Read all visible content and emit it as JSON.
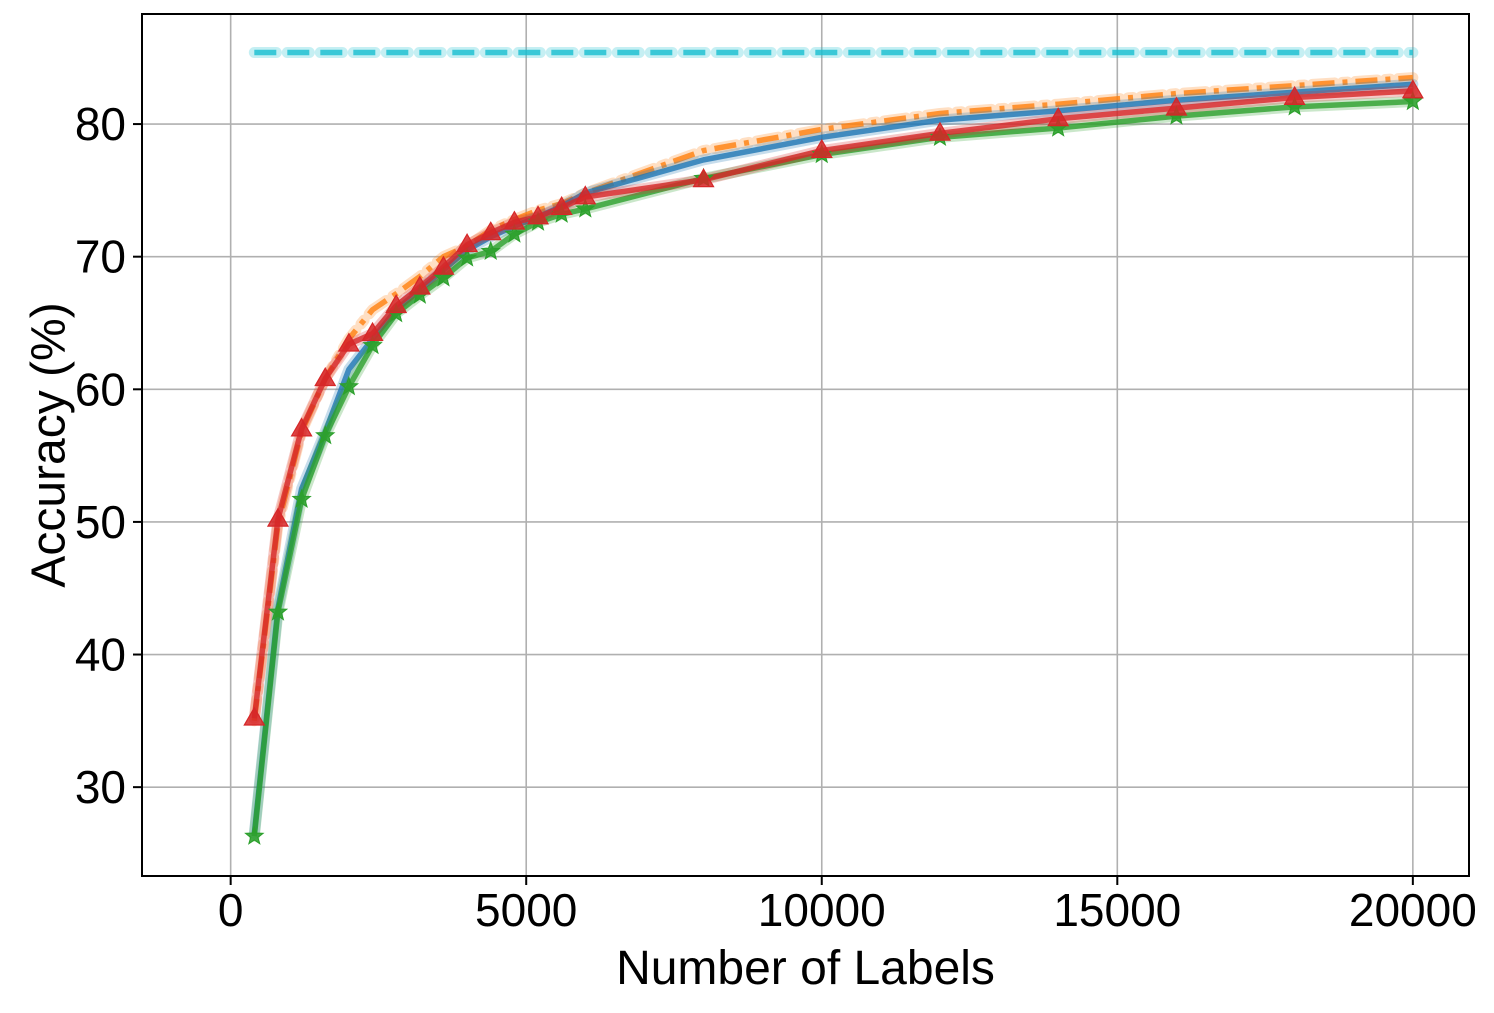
{
  "chart_data": {
    "type": "line",
    "title": "",
    "xlabel": "Number of Labels",
    "ylabel": "Accuracy (%)",
    "xlim": [
      -1500,
      20950
    ],
    "ylim": [
      23.3,
      88.3
    ],
    "xticks": [
      0,
      5000,
      10000,
      15000,
      20000
    ],
    "yticks": [
      30,
      40,
      50,
      60,
      70,
      80
    ],
    "grid": true,
    "legend": "none",
    "series": [
      {
        "color": "#17becf",
        "style": "dashed",
        "marker": "none",
        "x": [
          400,
          20000
        ],
        "y": [
          85.4,
          85.4
        ]
      },
      {
        "color": "#ff7f0e",
        "style": "dashdot",
        "marker": "none",
        "x": [
          400,
          800,
          1200,
          1600,
          2000,
          2400,
          2800,
          3200,
          3600,
          4000,
          4400,
          4800,
          5200,
          5600,
          6000,
          8000,
          10000,
          12000,
          14000,
          16000,
          18000,
          20000
        ],
        "y": [
          35.0,
          49.8,
          56.8,
          60.8,
          63.8,
          66.0,
          67.2,
          68.5,
          70.0,
          70.8,
          72.0,
          72.8,
          73.5,
          74.0,
          74.8,
          78.0,
          79.6,
          80.8,
          81.5,
          82.3,
          82.9,
          83.5
        ]
      },
      {
        "color": "#1f77b4",
        "style": "solid",
        "marker": "none",
        "x": [
          400,
          800,
          1200,
          1600,
          2000,
          2400,
          2800,
          3200,
          3600,
          4000,
          4400,
          4800,
          5200,
          5600,
          6000,
          8000,
          10000,
          12000,
          14000,
          16000,
          18000,
          20000
        ],
        "y": [
          26.5,
          43.5,
          52.5,
          56.8,
          61.5,
          63.8,
          66.0,
          67.5,
          69.0,
          70.5,
          71.5,
          72.3,
          73.0,
          73.8,
          74.8,
          77.3,
          79.0,
          80.3,
          81.0,
          81.8,
          82.4,
          83.0
        ]
      },
      {
        "color": "#2ca02c",
        "style": "solid",
        "marker": "star",
        "x": [
          400,
          800,
          1200,
          1600,
          2000,
          2400,
          2800,
          3200,
          3600,
          4000,
          4400,
          4800,
          5200,
          5600,
          6000,
          8000,
          10000,
          12000,
          14000,
          16000,
          18000,
          20000
        ],
        "y": [
          26.3,
          43.2,
          51.7,
          56.5,
          60.2,
          63.3,
          65.7,
          67.1,
          68.4,
          69.9,
          70.4,
          71.7,
          72.6,
          73.2,
          73.6,
          75.9,
          77.7,
          79.0,
          79.7,
          80.6,
          81.3,
          81.7
        ]
      },
      {
        "color": "#d62728",
        "style": "solid",
        "marker": "triangle",
        "x": [
          400,
          800,
          1200,
          1600,
          2000,
          2400,
          2800,
          3200,
          3600,
          4000,
          4400,
          4800,
          5200,
          5600,
          6000,
          8000,
          10000,
          12000,
          14000,
          16000,
          18000,
          20000
        ],
        "y": [
          35.2,
          50.2,
          57.0,
          60.8,
          63.4,
          64.2,
          66.3,
          67.7,
          69.2,
          70.9,
          71.8,
          72.6,
          73.0,
          73.7,
          74.5,
          75.8,
          78.0,
          79.3,
          80.4,
          81.2,
          82.0,
          82.5
        ]
      }
    ]
  }
}
